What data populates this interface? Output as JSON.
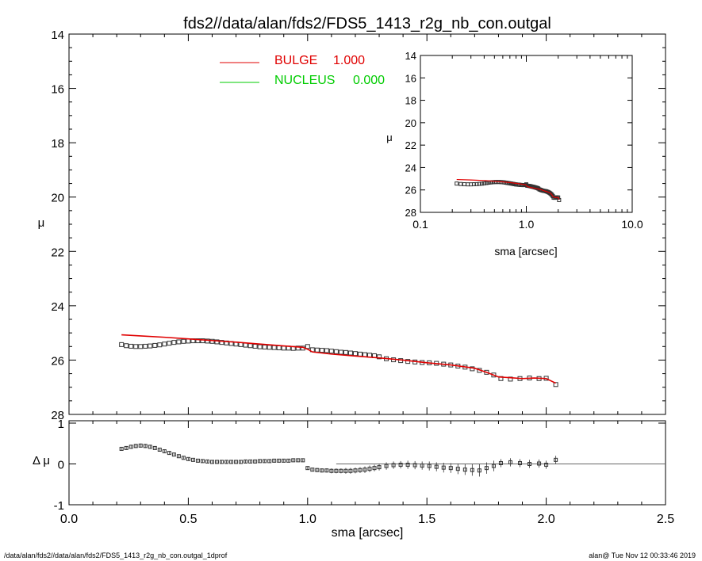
{
  "title": "fds2//data/alan/fds2/FDS5_1413_r2g_nb_con.outgal",
  "footer": {
    "left": "/data/alan/fds2//data/alan/fds2/FDS5_1413_r2g_nb_con.outgal_1dprof",
    "right": "alan@  Tue Nov 12 00:33:46 2019"
  },
  "colors": {
    "bulge": "#e00000",
    "nucleus": "#00cc00",
    "data": "#333333",
    "axis": "#000000"
  },
  "chart_data": [
    {
      "id": "main",
      "type": "scatter",
      "xlabel": "",
      "ylabel": "μ",
      "xlim": [
        0.0,
        2.5
      ],
      "ylim": [
        28,
        14
      ],
      "x_ticks": [
        "0.0",
        "0.5",
        "1.0",
        "1.5",
        "2.0",
        "2.5"
      ],
      "y_ticks": [
        "14",
        "16",
        "18",
        "20",
        "22",
        "24",
        "26",
        "28"
      ],
      "y_tick_values": [
        14,
        16,
        18,
        20,
        22,
        24,
        26,
        28
      ],
      "x_tick_values": [
        0.0,
        0.5,
        1.0,
        1.5,
        2.0,
        2.5
      ],
      "legend": [
        {
          "name": "BULGE",
          "value": "1.000",
          "color": "#e00000"
        },
        {
          "name": "NUCLEUS",
          "value": "0.000",
          "color": "#00cc00"
        }
      ],
      "legend_placement": "top-left",
      "series": [
        {
          "name": "BULGE",
          "kind": "line",
          "color": "#e00000",
          "x": [
            0.22,
            0.3,
            0.4,
            0.5,
            0.6,
            0.7,
            0.8,
            0.9,
            0.98,
            1.0,
            1.02,
            1.1,
            1.2,
            1.3,
            1.4,
            1.5,
            1.6,
            1.7,
            1.75,
            1.8,
            1.85,
            1.9,
            1.95,
            2.0,
            2.04
          ],
          "y": [
            25.07,
            25.11,
            25.16,
            25.22,
            25.28,
            25.34,
            25.41,
            25.48,
            25.53,
            25.6,
            25.7,
            25.78,
            25.85,
            25.92,
            26.0,
            26.1,
            26.18,
            26.3,
            26.45,
            26.62,
            26.65,
            26.68,
            26.66,
            26.68,
            26.85
          ]
        },
        {
          "name": "data",
          "kind": "markers",
          "color": "#333333",
          "x": [
            0.22,
            0.24,
            0.26,
            0.28,
            0.3,
            0.32,
            0.34,
            0.36,
            0.38,
            0.4,
            0.42,
            0.44,
            0.46,
            0.48,
            0.5,
            0.52,
            0.54,
            0.56,
            0.58,
            0.6,
            0.62,
            0.64,
            0.66,
            0.68,
            0.7,
            0.72,
            0.74,
            0.76,
            0.78,
            0.8,
            0.82,
            0.84,
            0.86,
            0.88,
            0.9,
            0.92,
            0.94,
            0.96,
            0.98,
            1.0,
            1.02,
            1.04,
            1.06,
            1.08,
            1.1,
            1.12,
            1.14,
            1.16,
            1.18,
            1.2,
            1.22,
            1.24,
            1.26,
            1.28,
            1.3,
            1.33,
            1.36,
            1.39,
            1.42,
            1.45,
            1.48,
            1.51,
            1.54,
            1.57,
            1.6,
            1.63,
            1.66,
            1.69,
            1.72,
            1.75,
            1.78,
            1.81,
            1.85,
            1.89,
            1.93,
            1.97,
            2.0,
            2.04
          ],
          "y": [
            25.43,
            25.47,
            25.49,
            25.5,
            25.5,
            25.49,
            25.48,
            25.46,
            25.44,
            25.41,
            25.38,
            25.35,
            25.33,
            25.31,
            25.3,
            25.29,
            25.29,
            25.29,
            25.3,
            25.31,
            25.33,
            25.35,
            25.37,
            25.39,
            25.41,
            25.43,
            25.45,
            25.47,
            25.49,
            25.51,
            25.52,
            25.53,
            25.54,
            25.55,
            25.56,
            25.56,
            25.57,
            25.56,
            25.56,
            25.5,
            25.62,
            25.63,
            25.64,
            25.65,
            25.67,
            25.69,
            25.71,
            25.72,
            25.74,
            25.76,
            25.78,
            25.8,
            25.82,
            25.84,
            25.88,
            25.95,
            25.99,
            26.02,
            26.05,
            26.07,
            26.09,
            26.1,
            26.12,
            26.15,
            26.18,
            26.22,
            26.26,
            26.32,
            26.38,
            26.45,
            26.55,
            26.68,
            26.7,
            26.68,
            26.66,
            26.68,
            26.67,
            26.9
          ]
        }
      ]
    },
    {
      "id": "inset",
      "type": "scatter",
      "xlabel": "sma [arcsec]",
      "ylabel": "μ",
      "x_scale": "log",
      "xlim": [
        0.1,
        10.0
      ],
      "ylim": [
        28,
        14
      ],
      "x_ticks": [
        "0.1",
        "1.0",
        "10.0"
      ],
      "x_tick_values": [
        0.1,
        1.0,
        10.0
      ],
      "y_ticks": [
        "14",
        "16",
        "18",
        "20",
        "22",
        "24",
        "26",
        "28"
      ],
      "y_tick_values": [
        14,
        16,
        18,
        20,
        22,
        24,
        26,
        28
      ]
    },
    {
      "id": "residual",
      "type": "scatter",
      "xlabel": "sma [arcsec]",
      "ylabel": "Δ μ",
      "xlim": [
        0.0,
        2.5
      ],
      "ylim": [
        -1,
        1
      ],
      "x_ticks": [
        "0.0",
        "0.5",
        "1.0",
        "1.5",
        "2.0",
        "2.5"
      ],
      "x_tick_values": [
        0.0,
        0.5,
        1.0,
        1.5,
        2.0,
        2.5
      ],
      "y_ticks": [
        "1",
        "0",
        "-1"
      ],
      "y_tick_values": [
        1,
        0,
        -1
      ],
      "series": [
        {
          "name": "residual",
          "kind": "markers",
          "color": "#333333",
          "x": [
            0.22,
            0.24,
            0.26,
            0.28,
            0.3,
            0.32,
            0.34,
            0.36,
            0.38,
            0.4,
            0.42,
            0.44,
            0.46,
            0.48,
            0.5,
            0.52,
            0.54,
            0.56,
            0.58,
            0.6,
            0.62,
            0.64,
            0.66,
            0.68,
            0.7,
            0.72,
            0.74,
            0.76,
            0.78,
            0.8,
            0.82,
            0.84,
            0.86,
            0.88,
            0.9,
            0.92,
            0.94,
            0.96,
            0.98,
            1.0,
            1.02,
            1.04,
            1.06,
            1.08,
            1.1,
            1.12,
            1.14,
            1.16,
            1.18,
            1.2,
            1.22,
            1.24,
            1.26,
            1.28,
            1.3,
            1.33,
            1.36,
            1.39,
            1.42,
            1.45,
            1.48,
            1.51,
            1.54,
            1.57,
            1.6,
            1.63,
            1.66,
            1.69,
            1.72,
            1.75,
            1.78,
            1.81,
            1.85,
            1.89,
            1.93,
            1.97,
            2.0,
            2.04
          ],
          "y": [
            0.37,
            0.39,
            0.42,
            0.44,
            0.45,
            0.44,
            0.42,
            0.39,
            0.35,
            0.31,
            0.27,
            0.23,
            0.19,
            0.15,
            0.12,
            0.1,
            0.08,
            0.07,
            0.06,
            0.05,
            0.05,
            0.05,
            0.05,
            0.05,
            0.05,
            0.05,
            0.06,
            0.06,
            0.06,
            0.07,
            0.07,
            0.07,
            0.08,
            0.08,
            0.08,
            0.08,
            0.09,
            0.09,
            0.09,
            -0.1,
            -0.14,
            -0.15,
            -0.16,
            -0.16,
            -0.17,
            -0.17,
            -0.17,
            -0.17,
            -0.17,
            -0.16,
            -0.15,
            -0.14,
            -0.12,
            -0.1,
            -0.08,
            -0.05,
            -0.03,
            -0.02,
            -0.02,
            -0.03,
            -0.04,
            -0.05,
            -0.07,
            -0.09,
            -0.1,
            -0.12,
            -0.14,
            -0.15,
            -0.16,
            -0.1,
            -0.05,
            0.02,
            0.04,
            0.02,
            0.0,
            0.01,
            -0.02,
            0.1
          ],
          "err": [
            0.04,
            0.04,
            0.05,
            0.05,
            0.05,
            0.05,
            0.05,
            0.04,
            0.04,
            0.04,
            0.04,
            0.03,
            0.03,
            0.03,
            0.03,
            0.03,
            0.03,
            0.03,
            0.03,
            0.03,
            0.03,
            0.03,
            0.03,
            0.03,
            0.03,
            0.03,
            0.03,
            0.03,
            0.03,
            0.03,
            0.03,
            0.03,
            0.03,
            0.03,
            0.03,
            0.03,
            0.03,
            0.03,
            0.03,
            0.04,
            0.04,
            0.05,
            0.05,
            0.05,
            0.06,
            0.06,
            0.06,
            0.07,
            0.07,
            0.07,
            0.07,
            0.08,
            0.08,
            0.08,
            0.08,
            0.09,
            0.09,
            0.09,
            0.1,
            0.1,
            0.1,
            0.11,
            0.11,
            0.12,
            0.12,
            0.13,
            0.13,
            0.14,
            0.15,
            0.14,
            0.13,
            0.1,
            0.1,
            0.1,
            0.1,
            0.1,
            0.1,
            0.1
          ]
        }
      ]
    }
  ]
}
